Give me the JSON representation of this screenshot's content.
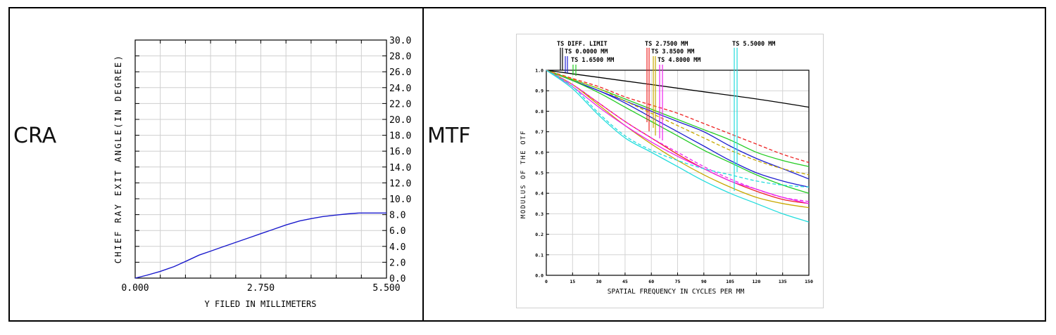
{
  "panels": {
    "left_label": "CRA",
    "right_label": "MTF"
  },
  "chart_data": [
    {
      "type": "line",
      "ylabel": "CHIEF RAY EXIT ANGLE(IN DEGREE)",
      "xlabel": "Y FILED IN MILLIMETERS",
      "xlim": [
        0,
        5.5
      ],
      "ylim": [
        0,
        30
      ],
      "x_ticks": [
        "0.000",
        "2.750",
        "5.500"
      ],
      "y_ticks": [
        "0.0",
        "2.0",
        "4.0",
        "6.0",
        "8.0",
        "10.0",
        "12.0",
        "14.0",
        "16.0",
        "18.0",
        "20.0",
        "22.0",
        "24.0",
        "26.0",
        "28.0",
        "30.0"
      ],
      "grid": true,
      "series": [
        {
          "color": "#1a1acc",
          "x": [
            0,
            0.25,
            0.55,
            0.85,
            1.1,
            1.4,
            1.65,
            1.9,
            2.2,
            2.5,
            2.75,
            3.0,
            3.3,
            3.6,
            3.85,
            4.1,
            4.4,
            4.65,
            4.9,
            5.2,
            5.5
          ],
          "y": [
            0,
            0.35,
            0.85,
            1.45,
            2.1,
            2.9,
            3.4,
            3.9,
            4.5,
            5.1,
            5.6,
            6.1,
            6.7,
            7.2,
            7.5,
            7.75,
            7.95,
            8.1,
            8.2,
            8.2,
            8.2
          ]
        }
      ]
    },
    {
      "type": "line",
      "ylabel": "MODULUS OF THE OTF",
      "xlabel": "SPATIAL FREQUENCY IN CYCLES PER MM",
      "xlim": [
        0,
        150
      ],
      "ylim": [
        0,
        1
      ],
      "x_ticks": [
        "0",
        "15",
        "30",
        "45",
        "60",
        "75",
        "90",
        "105",
        "120",
        "135",
        "150"
      ],
      "y_ticks": [
        "0.0",
        "0.1",
        "0.2",
        "0.3",
        "0.4",
        "0.5",
        "0.6",
        "0.7",
        "0.8",
        "0.9",
        "1.0"
      ],
      "grid": true,
      "legend_entries": [
        "TS DIFF. LIMIT",
        "TS 0.0000 MM",
        "TS 1.6500 MM",
        "TS 2.7500 MM",
        "TS 3.8500 MM",
        "TS 4.8000 MM",
        "TS 5.5000 MM"
      ],
      "series": [
        {
          "color": "#000000",
          "dash": false,
          "x": [
            0,
            30,
            60,
            90,
            120,
            150
          ],
          "y": [
            1.0,
            0.965,
            0.93,
            0.895,
            0.86,
            0.82
          ]
        },
        {
          "color": "#2020d0",
          "dash": false,
          "x": [
            0,
            15,
            30,
            45,
            60,
            75,
            90,
            105,
            120,
            135,
            150
          ],
          "y": [
            1.0,
            0.95,
            0.9,
            0.85,
            0.8,
            0.75,
            0.7,
            0.63,
            0.57,
            0.52,
            0.47
          ]
        },
        {
          "color": "#2020d0",
          "dash": false,
          "x": [
            0,
            15,
            30,
            45,
            60,
            75,
            90,
            105,
            120,
            135,
            150
          ],
          "y": [
            1.0,
            0.95,
            0.9,
            0.84,
            0.77,
            0.7,
            0.63,
            0.56,
            0.5,
            0.46,
            0.43
          ]
        },
        {
          "color": "#22cc22",
          "dash": false,
          "x": [
            0,
            15,
            30,
            45,
            60,
            75,
            90,
            105,
            120,
            135,
            150
          ],
          "y": [
            1.0,
            0.955,
            0.91,
            0.86,
            0.81,
            0.76,
            0.71,
            0.66,
            0.6,
            0.56,
            0.53
          ]
        },
        {
          "color": "#22cc22",
          "dash": false,
          "x": [
            0,
            15,
            30,
            45,
            60,
            75,
            90,
            105,
            120,
            135,
            150
          ],
          "y": [
            1.0,
            0.95,
            0.89,
            0.82,
            0.75,
            0.68,
            0.61,
            0.55,
            0.49,
            0.44,
            0.4
          ]
        },
        {
          "color": "#ee2222",
          "dash": true,
          "x": [
            0,
            15,
            30,
            45,
            60,
            75,
            90,
            105,
            120,
            135,
            150
          ],
          "y": [
            1.0,
            0.96,
            0.92,
            0.87,
            0.83,
            0.79,
            0.74,
            0.69,
            0.64,
            0.59,
            0.55
          ]
        },
        {
          "color": "#ee2222",
          "dash": false,
          "x": [
            0,
            15,
            30,
            45,
            60,
            75,
            90,
            105,
            120,
            135,
            150
          ],
          "y": [
            1.0,
            0.93,
            0.84,
            0.75,
            0.67,
            0.59,
            0.52,
            0.46,
            0.41,
            0.37,
            0.35
          ]
        },
        {
          "color": "#c8a800",
          "dash": true,
          "x": [
            0,
            15,
            30,
            45,
            60,
            75,
            90,
            105,
            120,
            135,
            150
          ],
          "y": [
            1.0,
            0.955,
            0.91,
            0.85,
            0.79,
            0.73,
            0.67,
            0.61,
            0.56,
            0.52,
            0.49
          ]
        },
        {
          "color": "#c8a800",
          "dash": false,
          "x": [
            0,
            15,
            30,
            45,
            60,
            75,
            90,
            105,
            120,
            135,
            150
          ],
          "y": [
            1.0,
            0.93,
            0.83,
            0.73,
            0.64,
            0.56,
            0.49,
            0.43,
            0.38,
            0.35,
            0.33
          ]
        },
        {
          "color": "#ee22ee",
          "dash": true,
          "x": [
            0,
            15,
            30,
            45,
            60,
            75,
            90,
            105,
            120,
            135,
            150
          ],
          "y": [
            1.0,
            0.93,
            0.84,
            0.75,
            0.67,
            0.6,
            0.53,
            0.47,
            0.42,
            0.38,
            0.36
          ]
        },
        {
          "color": "#ee22ee",
          "dash": false,
          "x": [
            0,
            15,
            30,
            45,
            60,
            75,
            90,
            105,
            120,
            135,
            150
          ],
          "y": [
            1.0,
            0.92,
            0.82,
            0.73,
            0.65,
            0.58,
            0.52,
            0.46,
            0.42,
            0.38,
            0.35
          ]
        },
        {
          "color": "#22dddd",
          "dash": true,
          "x": [
            0,
            15,
            30,
            45,
            60,
            75,
            90,
            105,
            120,
            135,
            150
          ],
          "y": [
            1.0,
            0.92,
            0.79,
            0.68,
            0.61,
            0.56,
            0.52,
            0.49,
            0.46,
            0.44,
            0.43
          ]
        },
        {
          "color": "#22dddd",
          "dash": false,
          "x": [
            0,
            15,
            30,
            45,
            60,
            75,
            90,
            105,
            120,
            135,
            150
          ],
          "y": [
            1.0,
            0.91,
            0.78,
            0.67,
            0.6,
            0.53,
            0.46,
            0.4,
            0.35,
            0.3,
            0.26
          ]
        }
      ]
    }
  ]
}
